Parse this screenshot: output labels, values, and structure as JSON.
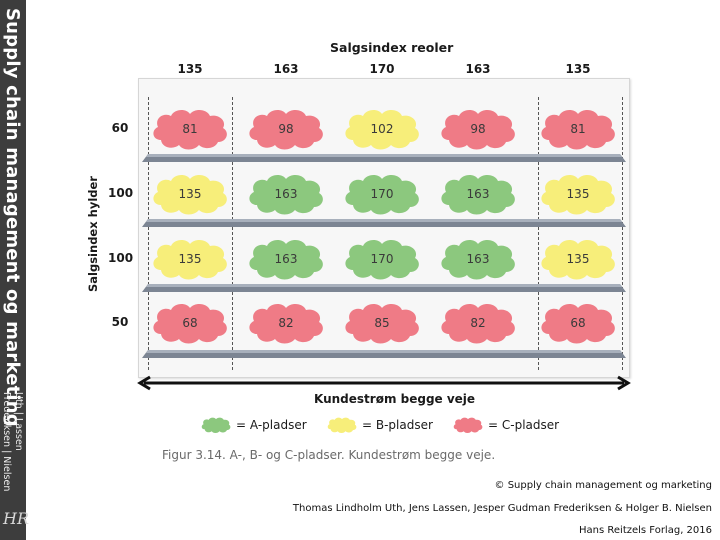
{
  "sidebar": {
    "title": "Supply chain management og marketing",
    "authors_line1": "Uth | Lassen",
    "authors_line2": "Frederiksen | Nielsen",
    "logo": "HR"
  },
  "figure": {
    "top_title": "Salgsindex reoler",
    "column_values": [
      "135",
      "163",
      "170",
      "163",
      "135"
    ],
    "row_axis_label": "Salgsindex hylder",
    "row_values": [
      "60",
      "100",
      "100",
      "50"
    ],
    "cells": [
      [
        {
          "value": "81",
          "class": "C"
        },
        {
          "value": "98",
          "class": "C"
        },
        {
          "value": "102",
          "class": "B"
        },
        {
          "value": "98",
          "class": "C"
        },
        {
          "value": "81",
          "class": "C"
        }
      ],
      [
        {
          "value": "135",
          "class": "B"
        },
        {
          "value": "163",
          "class": "A"
        },
        {
          "value": "170",
          "class": "A"
        },
        {
          "value": "163",
          "class": "A"
        },
        {
          "value": "135",
          "class": "B"
        }
      ],
      [
        {
          "value": "135",
          "class": "B"
        },
        {
          "value": "163",
          "class": "A"
        },
        {
          "value": "170",
          "class": "A"
        },
        {
          "value": "163",
          "class": "A"
        },
        {
          "value": "135",
          "class": "B"
        }
      ],
      [
        {
          "value": "68",
          "class": "C"
        },
        {
          "value": "82",
          "class": "C"
        },
        {
          "value": "85",
          "class": "C"
        },
        {
          "value": "82",
          "class": "C"
        },
        {
          "value": "68",
          "class": "C"
        }
      ]
    ],
    "flow_label": "Kundestrøm begge veje",
    "legend": [
      {
        "class": "A",
        "label": "= A-pladser"
      },
      {
        "class": "B",
        "label": "= B-pladser"
      },
      {
        "class": "C",
        "label": "= C-pladser"
      }
    ],
    "caption": "Figur 3.14. A-, B- og C-pladser. Kundestrøm begge veje."
  },
  "colors": {
    "A": "#8cc87e",
    "B": "#f7ee7a",
    "C": "#ef7b86"
  },
  "credits": {
    "copyright": "© Supply chain management og marketing",
    "authors": "Thomas Lindholm Uth, Jens Lassen, Jesper Gudman Frederiksen & Holger B. Nielsen",
    "publisher": "Hans Reitzels Forlag, 2016"
  }
}
